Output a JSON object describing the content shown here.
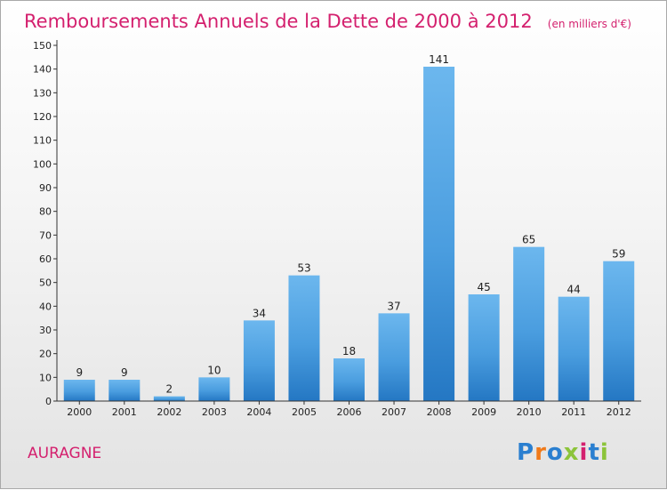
{
  "title": "Remboursements Annuels de la Dette de 2000 à 2012",
  "unit": "(en milliers d'€)",
  "commune": "AURAGNE",
  "logo": {
    "letters": [
      "P",
      "r",
      "o",
      "x",
      "i",
      "t",
      "i"
    ],
    "colors": [
      "#2a7fd0",
      "#f07a1a",
      "#2a7fd0",
      "#8cc43a",
      "#d4206e",
      "#2a7fd0",
      "#8cc43a"
    ]
  },
  "colors": {
    "bar_light": "#6cb7ee",
    "bar_dark": "#2477c3",
    "title": "#d4206e"
  },
  "chart_data": {
    "type": "bar",
    "title": "Remboursements Annuels de la Dette de 2000 à 2012",
    "ylabel": "",
    "xlabel": "",
    "categories": [
      "2000",
      "2001",
      "2002",
      "2003",
      "2004",
      "2005",
      "2006",
      "2007",
      "2008",
      "2009",
      "2010",
      "2011",
      "2012"
    ],
    "values": [
      9,
      9,
      2,
      10,
      34,
      53,
      18,
      37,
      141,
      45,
      65,
      44,
      59
    ],
    "ylim": [
      0,
      150
    ],
    "yticks": [
      0,
      10,
      20,
      30,
      40,
      50,
      60,
      70,
      80,
      90,
      100,
      110,
      120,
      130,
      140,
      150
    ],
    "grid": false,
    "legend": "none"
  }
}
